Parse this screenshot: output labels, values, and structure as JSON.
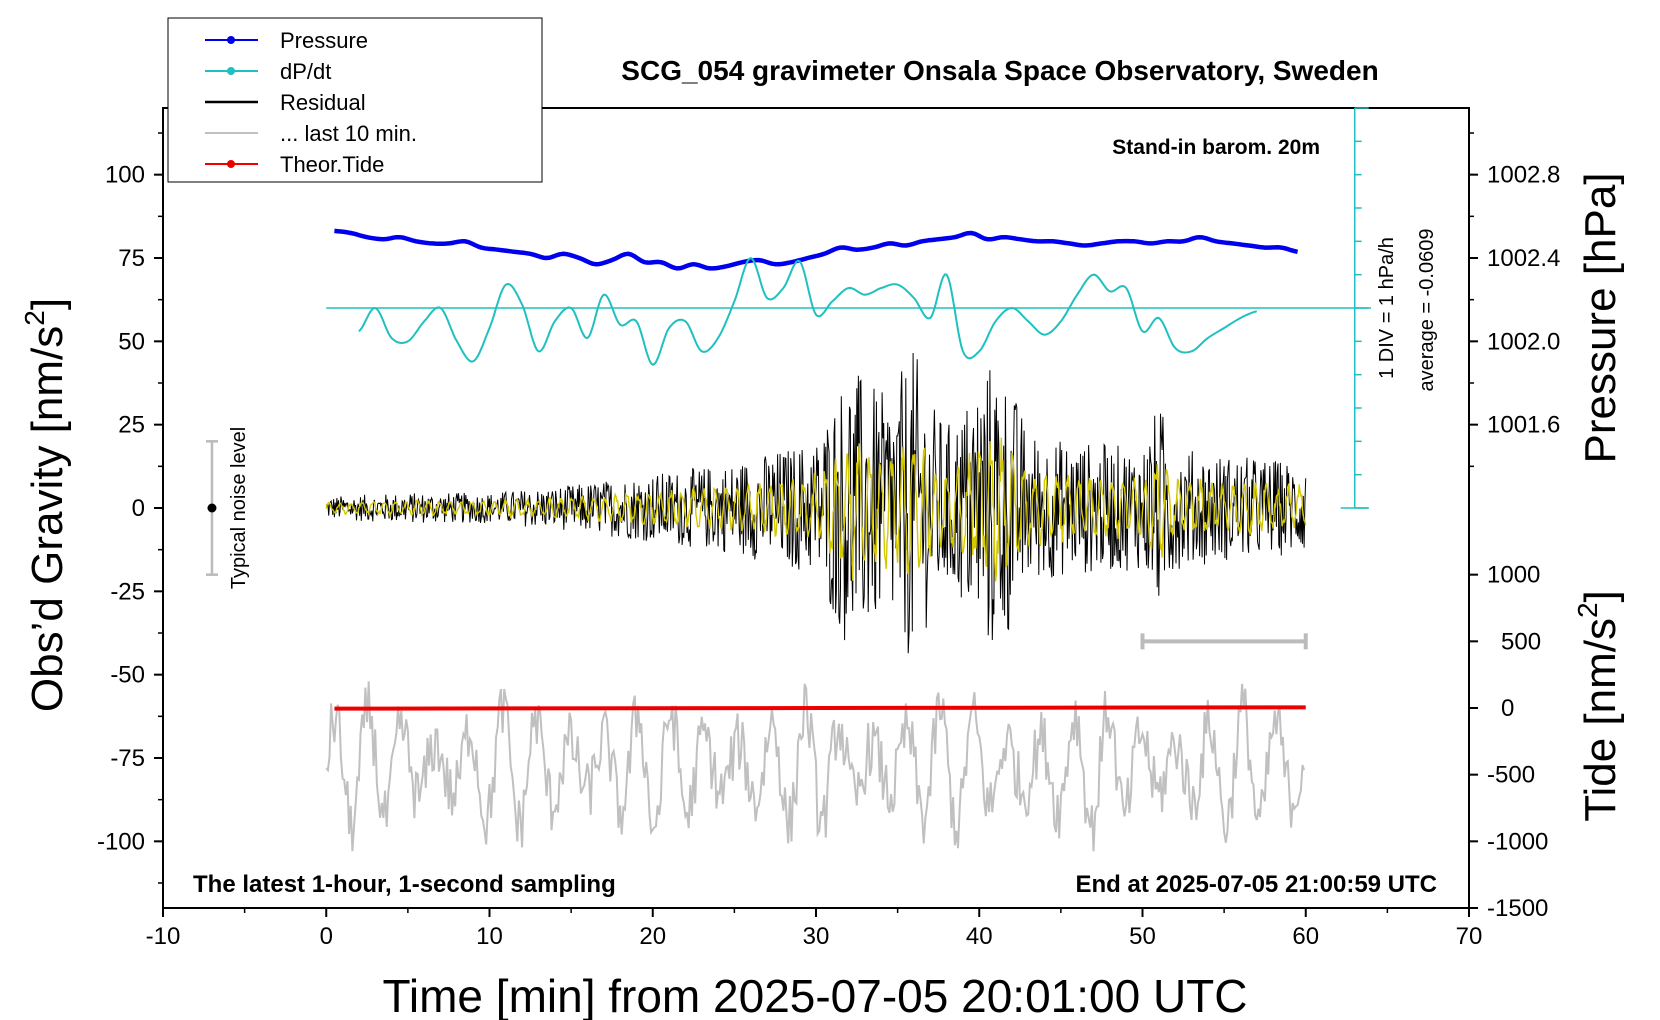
{
  "chart_data": {
    "type": "line",
    "title": "SCG_054 gravimeter Onsala Space Observatory, Sweden",
    "xlabel": "Time [min] from 2025-07-05 20:01:00 UTC",
    "ylabel_left": "Obs’d Gravity [nm/s",
    "ylabel_pressure": "Pressure [hPa]",
    "ylabel_tide": "Tide [nm/s",
    "superscript": "2",
    "xlim": [
      -10,
      70
    ],
    "ylim_gravity": [
      -120,
      120
    ],
    "xticks": [
      -10,
      0,
      10,
      20,
      30,
      40,
      50,
      60,
      70
    ],
    "xtick_labels": [
      "-10",
      "0",
      "10",
      "20",
      "30",
      "40",
      "50",
      "60",
      "70"
    ],
    "yticks_gravity": [
      100,
      75,
      50,
      25,
      0,
      -25,
      -50,
      -75,
      -100
    ],
    "ytick_labels_gravity": [
      "100",
      "75",
      "50",
      "25",
      "0",
      "-25",
      "-50",
      "-75",
      "-100"
    ],
    "pressure_ticks": [
      1002.8,
      1002.4,
      1002.0,
      1001.6
    ],
    "pressure_tick_labels": [
      "1002.8",
      "1002.4",
      "1002.0",
      "1001.6"
    ],
    "tide_ticks": [
      1000,
      500,
      0,
      -500,
      -1000,
      -1500
    ],
    "tide_tick_labels": [
      "1000",
      "500",
      "0",
      "-500",
      "-1000",
      "-1500"
    ],
    "pressure_map": {
      "hpa": [
        1001.6,
        1002.8
      ],
      "grav": [
        25,
        100
      ]
    },
    "tide_map": {
      "tide": [
        -1500,
        1000
      ],
      "grav": [
        -120,
        -20
      ]
    },
    "legend": {
      "position": "top-left",
      "entries": [
        {
          "label": "Pressure",
          "color": "#0000ee",
          "marker": true
        },
        {
          "label": "dP/dt",
          "color": "#20c0c0",
          "marker": true
        },
        {
          "label": "Residual",
          "color": "#000000",
          "marker": false
        },
        {
          "label": "... last 10 min.",
          "color": "#c0c0c0",
          "marker": false
        },
        {
          "label": "Theor.Tide",
          "color": "#ee0000",
          "marker": true
        }
      ]
    },
    "annotations": {
      "barometer": "Stand-in barom. 20m",
      "dpdt_scale": "1 DIV = 1 hPa/h",
      "dpdt_average": "average = -0.0609",
      "noise": "Typical noise level",
      "bottom_left": "The latest 1-hour, 1-second sampling",
      "bottom_right": "End at 2025-07-05 21:00:59 UTC"
    },
    "noise_bar": {
      "x": -7,
      "center": 0,
      "half_range": 20
    },
    "window_10min": {
      "x": [
        50,
        60
      ],
      "y": -40
    },
    "series": [
      {
        "name": "Pressure",
        "color": "#0000ee",
        "unit": "hPa",
        "x": [
          0.5,
          1.5,
          2.5,
          3.5,
          4.5,
          5.5,
          6.5,
          7.5,
          8.5,
          9.5,
          10.5,
          11.5,
          12.5,
          13.5,
          14.5,
          15.5,
          16.5,
          17.5,
          18.5,
          19.5,
          20.5,
          21.5,
          22.5,
          23.5,
          24.5,
          25.5,
          26.5,
          27.5,
          28.5,
          29.5,
          30.5,
          31.5,
          32.5,
          33.5,
          34.5,
          35.5,
          36.5,
          37.5,
          38.5,
          39.5,
          40.5,
          41.5,
          42.5,
          43.5,
          44.5,
          45.5,
          46.5,
          47.5,
          48.5,
          49.5,
          50.5,
          51.5,
          52.5,
          53.5,
          54.5,
          55.5,
          56.5,
          57.5,
          58.5,
          59.5
        ],
        "values": [
          1002.53,
          1002.52,
          1002.5,
          1002.49,
          1002.5,
          1002.48,
          1002.47,
          1002.47,
          1002.48,
          1002.45,
          1002.44,
          1002.43,
          1002.42,
          1002.4,
          1002.42,
          1002.4,
          1002.37,
          1002.39,
          1002.42,
          1002.38,
          1002.38,
          1002.35,
          1002.37,
          1002.35,
          1002.36,
          1002.38,
          1002.39,
          1002.37,
          1002.38,
          1002.4,
          1002.42,
          1002.45,
          1002.44,
          1002.45,
          1002.47,
          1002.46,
          1002.48,
          1002.49,
          1002.5,
          1002.52,
          1002.49,
          1002.5,
          1002.49,
          1002.48,
          1002.48,
          1002.47,
          1002.46,
          1002.47,
          1002.48,
          1002.48,
          1002.47,
          1002.48,
          1002.48,
          1002.5,
          1002.48,
          1002.47,
          1002.46,
          1002.45,
          1002.45,
          1002.43
        ]
      },
      {
        "name": "dP/dt",
        "color": "#20c0c0",
        "unit": "hPa/h",
        "x": [
          2,
          3,
          4,
          5,
          6,
          7,
          8,
          9,
          10,
          11,
          12,
          13,
          14,
          15,
          16,
          17,
          18,
          19,
          20,
          21,
          22,
          23,
          24,
          25,
          26,
          27,
          28,
          29,
          30,
          31,
          32,
          33,
          34,
          35,
          36,
          37,
          38,
          39,
          40,
          41,
          42,
          43,
          44,
          45,
          46,
          47,
          48,
          49,
          50,
          51,
          52,
          53,
          54,
          55,
          56,
          57
        ],
        "values": [
          -0.7,
          0.0,
          -0.9,
          -1.0,
          -0.4,
          0.0,
          -1.0,
          -1.6,
          -0.6,
          0.7,
          0.1,
          -1.3,
          -0.4,
          0.0,
          -0.9,
          0.4,
          -0.5,
          -0.4,
          -1.7,
          -0.6,
          -0.4,
          -1.3,
          -0.9,
          0.2,
          1.5,
          0.3,
          0.6,
          1.4,
          -0.2,
          0.2,
          0.6,
          0.4,
          0.6,
          0.7,
          0.3,
          -0.3,
          1.0,
          -1.3,
          -1.3,
          -0.4,
          0.0,
          -0.4,
          -0.8,
          -0.4,
          0.4,
          1.0,
          0.5,
          0.6,
          -0.7,
          -0.3,
          -1.2,
          -1.3,
          -0.9,
          -0.6,
          -0.3,
          -0.1
        ]
      },
      {
        "name": "Theor.Tide",
        "color": "#ee0000",
        "unit": "nm/s²",
        "x": [
          0.5,
          60
        ],
        "values": [
          -5,
          5
        ]
      }
    ],
    "residual_envelope": {
      "x": [
        0,
        5,
        10,
        15,
        20,
        25,
        30,
        31,
        32,
        33,
        34,
        35,
        36,
        37,
        38,
        39,
        40,
        41,
        42,
        43,
        45,
        50,
        51,
        52,
        55,
        60
      ],
      "amplitude": [
        3,
        4,
        4,
        6,
        9,
        12,
        18,
        28,
        38,
        34,
        30,
        34,
        42,
        28,
        22,
        26,
        36,
        40,
        32,
        20,
        18,
        16,
        28,
        16,
        14,
        12
      ]
    }
  }
}
